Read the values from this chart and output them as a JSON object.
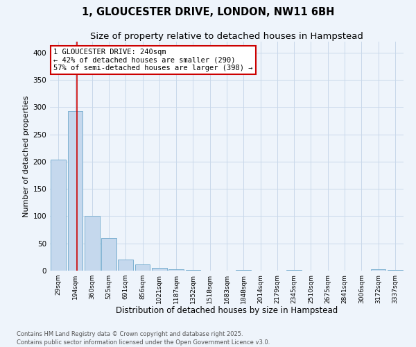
{
  "title1": "1, GLOUCESTER DRIVE, LONDON, NW11 6BH",
  "title2": "Size of property relative to detached houses in Hampstead",
  "xlabel": "Distribution of detached houses by size in Hampstead",
  "ylabel": "Number of detached properties",
  "categories": [
    "29sqm",
    "194sqm",
    "360sqm",
    "525sqm",
    "691sqm",
    "856sqm",
    "1021sqm",
    "1187sqm",
    "1352sqm",
    "1518sqm",
    "1683sqm",
    "1848sqm",
    "2014sqm",
    "2179sqm",
    "2345sqm",
    "2510sqm",
    "2675sqm",
    "2841sqm",
    "3006sqm",
    "3172sqm",
    "3337sqm"
  ],
  "values": [
    203,
    293,
    100,
    60,
    20,
    12,
    5,
    3,
    1,
    0,
    0,
    1,
    0,
    0,
    1,
    0,
    0,
    0,
    0,
    2,
    1
  ],
  "bar_color": "#c5d8ed",
  "bar_edge_color": "#7aafd0",
  "bar_edge_width": 0.7,
  "grid_color": "#c8d8ea",
  "background_color": "#eef4fb",
  "red_line_x": 1.12,
  "red_line_color": "#cc0000",
  "annotation_text": "1 GLOUCESTER DRIVE: 240sqm\n← 42% of detached houses are smaller (290)\n57% of semi-detached houses are larger (398) →",
  "annotation_box_color": "#ffffff",
  "annotation_box_edge_color": "#cc0000",
  "footer_text": "Contains HM Land Registry data © Crown copyright and database right 2025.\nContains public sector information licensed under the Open Government Licence v3.0.",
  "ylim": [
    0,
    420
  ],
  "yticks": [
    0,
    50,
    100,
    150,
    200,
    250,
    300,
    350,
    400
  ],
  "title_fontsize": 10.5,
  "subtitle_fontsize": 9.5,
  "tick_fontsize": 6.5,
  "ylabel_fontsize": 8,
  "xlabel_fontsize": 8.5,
  "footer_fontsize": 6.0,
  "annotation_fontsize": 7.5
}
